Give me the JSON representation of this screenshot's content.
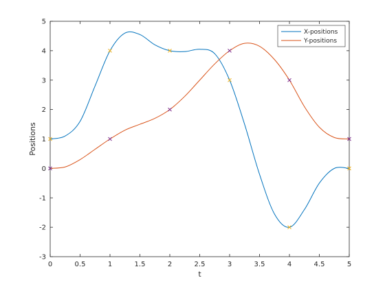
{
  "chart_data": {
    "type": "line",
    "xlabel": "t",
    "ylabel": "Positions",
    "xlim": [
      0,
      5
    ],
    "ylim": [
      -3,
      5
    ],
    "xticks": [
      "0",
      "0.5",
      "1",
      "1.5",
      "2",
      "2.5",
      "3",
      "3.5",
      "4",
      "4.5",
      "5"
    ],
    "yticks": [
      "-3",
      "-2",
      "-1",
      "0",
      "1",
      "2",
      "3",
      "4",
      "5"
    ],
    "grid": false,
    "legend_location": "top-right",
    "series": [
      {
        "name": "X-positions",
        "color": "#0072bd",
        "x": [
          0,
          0.25,
          0.5,
          0.75,
          1,
          1.25,
          1.5,
          1.75,
          2,
          2.25,
          2.5,
          2.75,
          3,
          3.25,
          3.5,
          3.75,
          4,
          4.25,
          4.5,
          4.75,
          5
        ],
        "y": [
          1,
          1.1,
          1.6,
          2.8,
          4.0,
          4.6,
          4.55,
          4.2,
          4.0,
          3.97,
          4.05,
          3.9,
          3.0,
          1.5,
          -0.2,
          -1.55,
          -2.0,
          -1.4,
          -0.5,
          0.0,
          0.0
        ]
      },
      {
        "name": "Y-positions",
        "color": "#d95319",
        "x": [
          0,
          0.25,
          0.5,
          0.75,
          1,
          1.25,
          1.5,
          1.75,
          2,
          2.25,
          2.5,
          2.75,
          3,
          3.25,
          3.5,
          3.75,
          4,
          4.25,
          4.5,
          4.75,
          5
        ],
        "y": [
          0,
          0.05,
          0.3,
          0.65,
          1.0,
          1.3,
          1.5,
          1.7,
          2.0,
          2.45,
          3.0,
          3.55,
          4.0,
          4.25,
          4.15,
          3.7,
          3.0,
          2.1,
          1.4,
          1.05,
          1.0
        ]
      }
    ],
    "markers": [
      {
        "x": 0,
        "y": 1,
        "color": "#edb120",
        "symbol": "x"
      },
      {
        "x": 1,
        "y": 4,
        "color": "#edb120",
        "symbol": "x"
      },
      {
        "x": 2,
        "y": 4,
        "color": "#edb120",
        "symbol": "x"
      },
      {
        "x": 3,
        "y": 3,
        "color": "#edb120",
        "symbol": "x"
      },
      {
        "x": 4,
        "y": -2,
        "color": "#edb120",
        "symbol": "x"
      },
      {
        "x": 5,
        "y": 0,
        "color": "#edb120",
        "symbol": "x"
      },
      {
        "x": 0,
        "y": 0,
        "color": "#7e2f8e",
        "symbol": "x"
      },
      {
        "x": 1,
        "y": 1,
        "color": "#7e2f8e",
        "symbol": "x"
      },
      {
        "x": 2,
        "y": 2,
        "color": "#7e2f8e",
        "symbol": "x"
      },
      {
        "x": 3,
        "y": 4,
        "color": "#7e2f8e",
        "symbol": "x"
      },
      {
        "x": 4,
        "y": 3,
        "color": "#7e2f8e",
        "symbol": "x"
      },
      {
        "x": 5,
        "y": 1,
        "color": "#7e2f8e",
        "symbol": "x"
      }
    ]
  }
}
